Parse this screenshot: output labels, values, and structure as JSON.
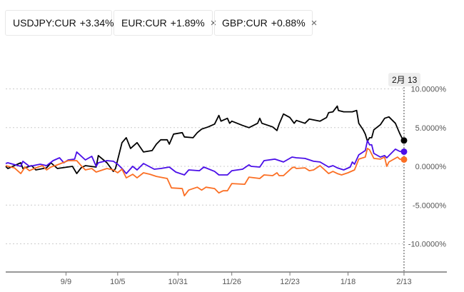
{
  "legend": [
    {
      "label": "USDJPY:CUR",
      "change": "+3.34%",
      "color": "#000000",
      "closable": false
    },
    {
      "label": "EUR:CUR",
      "change": "+1.89%",
      "color": "#4a0ee8",
      "closable": true
    },
    {
      "label": "GBP:CUR",
      "change": "+0.88%",
      "color": "#fb6f24",
      "closable": true
    }
  ],
  "close_icon": "×",
  "tooltip": "2月 13",
  "chart_data": {
    "type": "line",
    "title": "",
    "xlabel": "",
    "ylabel": "",
    "ylim": [
      -13,
      11.5
    ],
    "xlim": [
      0,
      205
    ],
    "grid": true,
    "legend_placement": "top-left",
    "y_ticks": [
      {
        "v": 10,
        "label": "10.0000%"
      },
      {
        "v": 5,
        "label": "5.0000%"
      },
      {
        "v": 0,
        "label": "0.0000%"
      },
      {
        "v": -5,
        "label": "-5.0000%"
      },
      {
        "v": -10,
        "label": "-10.0000%"
      }
    ],
    "x_ticks": [
      {
        "d": 28,
        "label": "9/9"
      },
      {
        "d": 52,
        "label": "10/5"
      },
      {
        "d": 80,
        "label": "10/31"
      },
      {
        "d": 105,
        "label": "11/26"
      },
      {
        "d": 132,
        "label": "12/23"
      },
      {
        "d": 159,
        "label": "1/18"
      },
      {
        "d": 185,
        "label": "2/13"
      }
    ],
    "marker_day": 185,
    "series": [
      {
        "name": "USDJPY:CUR",
        "color": "#000000",
        "points": [
          [
            0,
            0
          ],
          [
            1,
            -0.28
          ],
          [
            4,
            0.09
          ],
          [
            7,
            0.46
          ],
          [
            8,
            -0.28
          ],
          [
            12,
            0.09
          ],
          [
            14,
            -0.46
          ],
          [
            19,
            -0.19
          ],
          [
            21,
            0.46
          ],
          [
            24,
            -0.28
          ],
          [
            31,
            0
          ],
          [
            33,
            -0.93
          ],
          [
            35,
            -0.19
          ],
          [
            37,
            0.09
          ],
          [
            42,
            -0.09
          ],
          [
            43,
            1.39
          ],
          [
            47,
            0.46
          ],
          [
            50,
            -0.65
          ],
          [
            51,
            -0.28
          ],
          [
            54,
            3.06
          ],
          [
            56,
            3.7
          ],
          [
            58,
            2.31
          ],
          [
            61,
            3.06
          ],
          [
            64,
            1.85
          ],
          [
            68,
            2.04
          ],
          [
            70,
            2.87
          ],
          [
            72,
            3.43
          ],
          [
            75,
            3.43
          ],
          [
            76,
            2.87
          ],
          [
            78,
            4.17
          ],
          [
            82,
            4.35
          ],
          [
            83,
            3.8
          ],
          [
            87,
            3.7
          ],
          [
            89,
            4.35
          ],
          [
            91,
            4.81
          ],
          [
            94,
            5.09
          ],
          [
            97,
            5.46
          ],
          [
            99,
            6.57
          ],
          [
            100,
            5.83
          ],
          [
            103,
            6.2
          ],
          [
            104,
            5.56
          ],
          [
            105,
            5.83
          ],
          [
            110,
            5.28
          ],
          [
            113,
            5.0
          ],
          [
            117,
            5.56
          ],
          [
            118,
            6.2
          ],
          [
            119,
            5.56
          ],
          [
            124,
            5.09
          ],
          [
            126,
            4.63
          ],
          [
            127,
            5.46
          ],
          [
            129,
            6.76
          ],
          [
            132,
            6.3
          ],
          [
            134,
            5.56
          ],
          [
            135,
            5.93
          ],
          [
            139,
            5.56
          ],
          [
            141,
            6.11
          ],
          [
            146,
            5.83
          ],
          [
            149,
            6.3
          ],
          [
            150,
            6.94
          ],
          [
            152,
            7.04
          ],
          [
            154,
            7.78
          ],
          [
            154.5,
            7.22
          ],
          [
            157,
            7.04
          ],
          [
            161,
            7.04
          ],
          [
            163,
            7.22
          ],
          [
            164,
            5.56
          ],
          [
            166,
            4.72
          ],
          [
            167,
            4.17
          ],
          [
            168,
            3.24
          ],
          [
            169,
            3.7
          ],
          [
            170,
            3.7
          ],
          [
            171,
            4.72
          ],
          [
            174,
            5.37
          ],
          [
            176,
            6.2
          ],
          [
            178,
            6.39
          ],
          [
            181,
            5.56
          ],
          [
            183,
            4.26
          ],
          [
            184,
            3.7
          ],
          [
            185,
            3.34
          ]
        ]
      },
      {
        "name": "EUR:CUR",
        "color": "#4a0ee8",
        "points": [
          [
            0,
            0.37
          ],
          [
            1,
            0.46
          ],
          [
            7,
            0
          ],
          [
            8,
            0.65
          ],
          [
            11,
            0
          ],
          [
            16,
            0.28
          ],
          [
            19,
            0.09
          ],
          [
            22,
            0.74
          ],
          [
            25,
            1.11
          ],
          [
            27,
            0.46
          ],
          [
            29,
            0.83
          ],
          [
            32,
            0.93
          ],
          [
            33,
            1.85
          ],
          [
            37,
            0.83
          ],
          [
            40,
            1.3
          ],
          [
            42,
            0
          ],
          [
            43,
            0.46
          ],
          [
            47,
            0.74
          ],
          [
            50,
            0.65
          ],
          [
            52,
            0.28
          ],
          [
            54,
            -0.28
          ],
          [
            56,
            -0.93
          ],
          [
            59,
            0
          ],
          [
            61,
            -0.46
          ],
          [
            64,
            0.37
          ],
          [
            69,
            -0.37
          ],
          [
            72,
            -0.28
          ],
          [
            76,
            -0.09
          ],
          [
            79,
            -0.74
          ],
          [
            83,
            -1.11
          ],
          [
            85,
            -0.46
          ],
          [
            90,
            -0.56
          ],
          [
            92,
            -0.09
          ],
          [
            97,
            -0.65
          ],
          [
            99,
            -1.11
          ],
          [
            103,
            -1.11
          ],
          [
            105,
            -0.56
          ],
          [
            110,
            -0.37
          ],
          [
            113,
            0.19
          ],
          [
            114,
            0
          ],
          [
            118,
            -0.09
          ],
          [
            120,
            0.74
          ],
          [
            125,
            0.93
          ],
          [
            129,
            0.56
          ],
          [
            133,
            1.2
          ],
          [
            135,
            1.11
          ],
          [
            139,
            1.02
          ],
          [
            143,
            0.65
          ],
          [
            146,
            0.56
          ],
          [
            150,
            -0.09
          ],
          [
            152,
            0.09
          ],
          [
            154,
            -0.19
          ],
          [
            157,
            -0.46
          ],
          [
            160,
            -0.09
          ],
          [
            161,
            0.56
          ],
          [
            162,
            0.28
          ],
          [
            164,
            1.48
          ],
          [
            167,
            2.04
          ],
          [
            168,
            3.33
          ],
          [
            169,
            2.78
          ],
          [
            170,
            2.78
          ],
          [
            171,
            1.67
          ],
          [
            174,
            1.2
          ],
          [
            176,
            1.39
          ],
          [
            177,
            1.11
          ],
          [
            181,
            2.22
          ],
          [
            183,
            1.94
          ],
          [
            185,
            1.89
          ]
        ]
      },
      {
        "name": "GBP:CUR",
        "color": "#fb6f24",
        "points": [
          [
            0,
            0.09
          ],
          [
            4,
            -0.19
          ],
          [
            7,
            -0.93
          ],
          [
            9,
            -0.09
          ],
          [
            11,
            -0.56
          ],
          [
            14,
            -0.19
          ],
          [
            17,
            0.09
          ],
          [
            19,
            -0.46
          ],
          [
            21,
            -0.09
          ],
          [
            24,
            0.19
          ],
          [
            29,
            0.74
          ],
          [
            33,
            0.74
          ],
          [
            35,
            0.09
          ],
          [
            37,
            -0.46
          ],
          [
            40,
            -0.28
          ],
          [
            42,
            -0.74
          ],
          [
            47,
            -0.28
          ],
          [
            50,
            -0.46
          ],
          [
            52,
            -0.83
          ],
          [
            54,
            -0.37
          ],
          [
            56,
            -1.48
          ],
          [
            59,
            -1.02
          ],
          [
            61,
            -1.48
          ],
          [
            64,
            -0.83
          ],
          [
            67,
            -1.02
          ],
          [
            70,
            -1.3
          ],
          [
            75,
            -1.57
          ],
          [
            77,
            -2.78
          ],
          [
            82,
            -2.87
          ],
          [
            83,
            -3.8
          ],
          [
            85,
            -3.06
          ],
          [
            89,
            -2.69
          ],
          [
            91,
            -3.06
          ],
          [
            93,
            -2.69
          ],
          [
            97,
            -2.87
          ],
          [
            99,
            -3.43
          ],
          [
            101,
            -3.15
          ],
          [
            103,
            -3.15
          ],
          [
            105,
            -2.22
          ],
          [
            111,
            -2.31
          ],
          [
            113,
            -1.39
          ],
          [
            118,
            -1.57
          ],
          [
            120,
            -1.11
          ],
          [
            124,
            -1.2
          ],
          [
            126,
            -0.83
          ],
          [
            127,
            -1.2
          ],
          [
            129,
            -1.2
          ],
          [
            133,
            -0.19
          ],
          [
            134,
            -0.09
          ],
          [
            135,
            -0.28
          ],
          [
            139,
            -0.19
          ],
          [
            141,
            -0.56
          ],
          [
            143,
            -0.46
          ],
          [
            146,
            0.09
          ],
          [
            150,
            -0.93
          ],
          [
            152,
            -0.65
          ],
          [
            154,
            -0.93
          ],
          [
            156,
            -1.11
          ],
          [
            159,
            -0.83
          ],
          [
            162,
            -0.46
          ],
          [
            164,
            0.93
          ],
          [
            167,
            1.2
          ],
          [
            168,
            2.31
          ],
          [
            169,
            2.13
          ],
          [
            171,
            1.02
          ],
          [
            174,
            0.93
          ],
          [
            176,
            1.2
          ],
          [
            177,
            0
          ],
          [
            178,
            0.56
          ],
          [
            182,
            1.2
          ],
          [
            183,
            0.93
          ],
          [
            185,
            0.88
          ]
        ]
      }
    ]
  }
}
